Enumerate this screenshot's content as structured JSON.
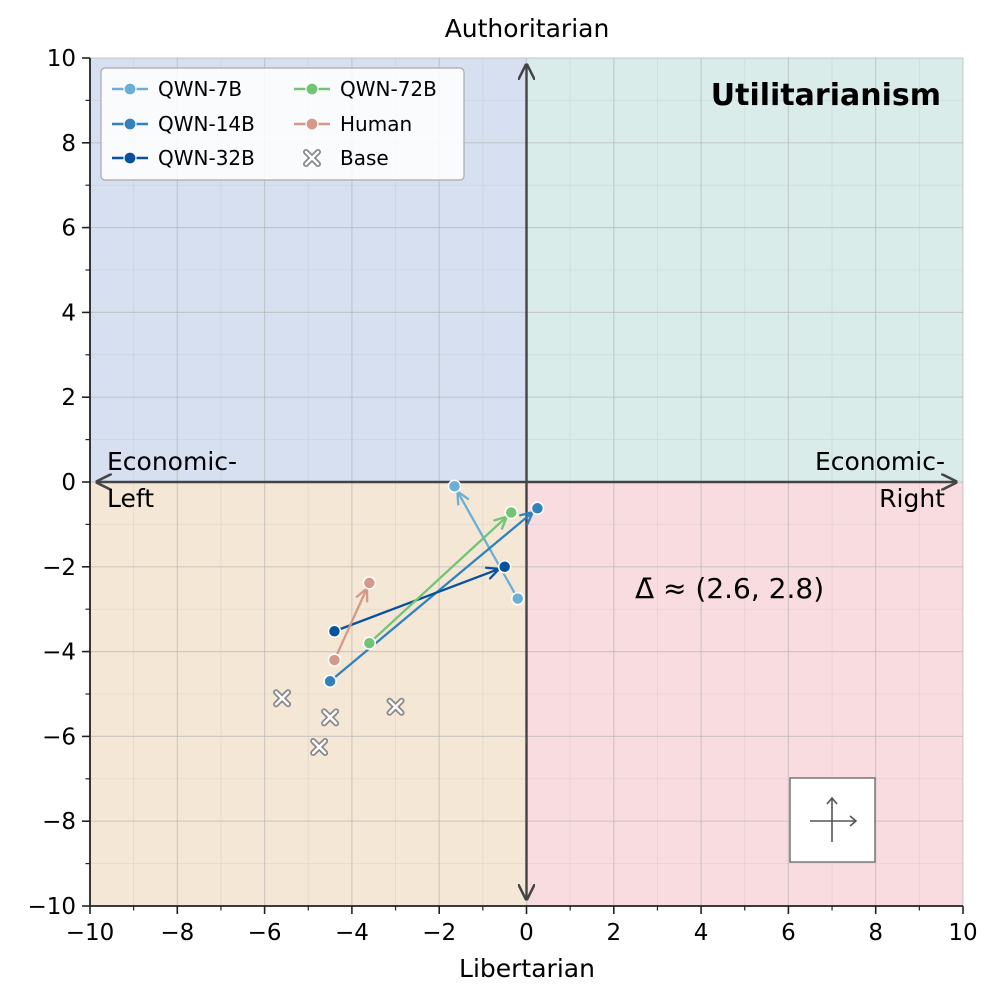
{
  "chart_data": {
    "type": "scatter",
    "title": "Utilitarianism",
    "xlabel": "Libertarian",
    "top_label": "Authoritarian",
    "xlim": [
      -10,
      10
    ],
    "ylim": [
      -10,
      10
    ],
    "xticks": [
      -10,
      -8,
      -6,
      -4,
      -2,
      0,
      2,
      4,
      6,
      8,
      10
    ],
    "yticks": [
      -10,
      -8,
      -6,
      -4,
      -2,
      0,
      2,
      4,
      6,
      8,
      10
    ],
    "grid": true,
    "legend_position": "top-left",
    "quadrant_labels": {
      "left_line1": "Economic-",
      "left_line2": "Left",
      "right_line1": "Economic-",
      "right_line2": "Right"
    },
    "annotation": "Δ̄ ≈ (2.6, 2.8)",
    "quadrant_colors": {
      "top_left": "#d6e0f1",
      "top_right": "#d9ece9",
      "bottom_left": "#f5e7d5",
      "bottom_right": "#f9dce0"
    },
    "series": [
      {
        "name": "QWN-7B",
        "color": "#6baed6",
        "start": [
          -0.2,
          -2.75
        ],
        "end": [
          -1.65,
          -0.1
        ]
      },
      {
        "name": "QWN-14B",
        "color": "#3182bd",
        "start": [
          -4.5,
          -4.7
        ],
        "end": [
          0.25,
          -0.62
        ]
      },
      {
        "name": "QWN-32B",
        "color": "#08519c",
        "start": [
          -4.4,
          -3.52
        ],
        "end": [
          -0.5,
          -2.0
        ]
      },
      {
        "name": "QWN-72B",
        "color": "#74c476",
        "start": [
          -3.6,
          -3.8
        ],
        "end": [
          -0.35,
          -0.72
        ]
      },
      {
        "name": "Human",
        "color": "#d4998a",
        "start": [
          -4.4,
          -4.2
        ],
        "end": [
          -3.6,
          -2.38
        ]
      }
    ],
    "base": {
      "name": "Base",
      "color": "#999999",
      "points": [
        [
          -5.6,
          -5.1
        ],
        [
          -4.5,
          -5.55
        ],
        [
          -3.0,
          -5.3
        ],
        [
          -4.75,
          -6.25
        ]
      ]
    }
  }
}
